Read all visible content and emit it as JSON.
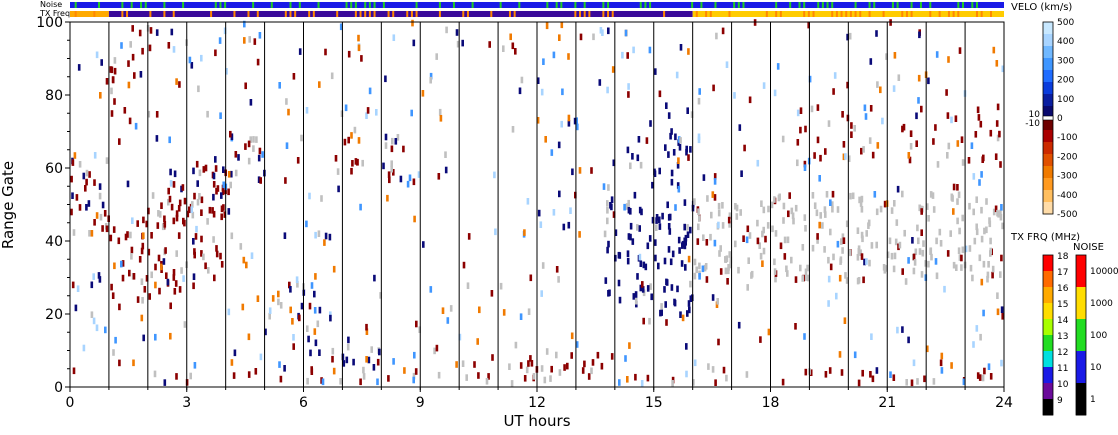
{
  "chart_data": {
    "type": "heatmap",
    "xlabel": "UT hours",
    "ylabel": "Range Gate",
    "xlim": [
      0,
      24
    ],
    "ylim": [
      0,
      100
    ],
    "x_ticks": [
      "0",
      "3",
      "6",
      "9",
      "12",
      "15",
      "18",
      "21",
      "24"
    ],
    "x_tick_values": [
      0,
      3,
      6,
      9,
      12,
      15,
      18,
      21,
      24
    ],
    "y_ticks": [
      "0",
      "20",
      "40",
      "60",
      "80",
      "100"
    ],
    "y_tick_values": [
      0,
      20,
      40,
      60,
      80,
      100
    ],
    "vertical_lines_hours": [
      1,
      2,
      3,
      4,
      5,
      6,
      7,
      8,
      9,
      10,
      11,
      12,
      13,
      14,
      15,
      16,
      17,
      18,
      19,
      20,
      21,
      22,
      23
    ],
    "top_bars": [
      {
        "label": "Noise",
        "segments": [
          {
            "start": 0,
            "end": 24,
            "color": "#1a1ae6"
          }
        ],
        "speckle_color": "#22cc22"
      },
      {
        "label": "TX Freq",
        "segments": [
          {
            "start": 0,
            "end": 1,
            "color": "#ffaa00"
          },
          {
            "start": 1,
            "end": 16,
            "color": "#3a0a9a"
          },
          {
            "start": 16,
            "end": 24,
            "color": "#ffcc00"
          }
        ],
        "speckle_color": "#ff8800"
      }
    ],
    "velocity_colorbar": {
      "title": "VELO (km/s)",
      "ticks": [
        "500",
        "400",
        "300",
        "200",
        "100",
        "0",
        "-100",
        "-200",
        "-300",
        "-400",
        "-500"
      ],
      "tick_values": [
        500,
        400,
        300,
        200,
        100,
        0,
        -100,
        -200,
        -300,
        -400,
        -500
      ],
      "side_labels": [
        "10",
        "-10"
      ],
      "colors": [
        "#c8e8ff",
        "#a8d4ff",
        "#70b8ff",
        "#3f96ff",
        "#1f6cff",
        "#0a3cdc",
        "#0a1ea0",
        "#0a0a6e",
        "#6e0000",
        "#aa0000",
        "#cc2a00",
        "#e05000",
        "#f07a00",
        "#ff9a20",
        "#ffbf60",
        "#ffdca8"
      ]
    },
    "txfreq_colorbar": {
      "title": "TX FRQ (MHz)",
      "ticks": [
        "18",
        "17",
        "16",
        "15",
        "14",
        "13",
        "12",
        "11",
        "10",
        "9"
      ],
      "colors": [
        "#ff0000",
        "#ff6a00",
        "#ffaa00",
        "#ffdd00",
        "#a8ff00",
        "#22dd22",
        "#00e0e0",
        "#1a1ae6",
        "#6a0a9a",
        "#000000"
      ]
    },
    "noise_colorbar": {
      "title": "NOISE",
      "ticks": [
        "10000",
        "1000",
        "100",
        "10",
        "1"
      ],
      "colors": [
        "#ff0000",
        "#ffdd00",
        "#22dd22",
        "#1a1ae6",
        "#000000"
      ]
    },
    "echo_colors": {
      "ground_scatter": "#c0c0c0",
      "negative_velocity": "#8c0000",
      "positive_velocity": "#0a0a78"
    },
    "echo_regions": [
      {
        "x_start": 0.0,
        "x_end": 1.0,
        "gate_start": 38,
        "gate_end": 62,
        "kind": "mixed",
        "trend": 0,
        "density": 0.5
      },
      {
        "x_start": 1.0,
        "x_end": 4.0,
        "gate_start": 24,
        "gate_end": 50,
        "kind": "negative",
        "trend": 8,
        "density": 0.5
      },
      {
        "x_start": 1.0,
        "x_end": 1.7,
        "gate_start": 72,
        "gate_end": 96,
        "kind": "negative",
        "trend": 0,
        "density": 0.35
      },
      {
        "x_start": 1.5,
        "x_end": 2.6,
        "gate_start": 90,
        "gate_end": 100,
        "kind": "negative",
        "trend": 0,
        "density": 0.3
      },
      {
        "x_start": 2.0,
        "x_end": 4.2,
        "gate_start": 45,
        "gate_end": 60,
        "kind": "mixed",
        "trend": 7,
        "density": 0.5
      },
      {
        "x_start": 4.2,
        "x_end": 5.2,
        "gate_start": 55,
        "gate_end": 68,
        "kind": "mixed",
        "trend": 0,
        "density": 0.45
      },
      {
        "x_start": 5.6,
        "x_end": 6.6,
        "gate_start": 14,
        "gate_end": 28,
        "kind": "mixed",
        "trend": 0,
        "density": 0.4
      },
      {
        "x_start": 6.8,
        "x_end": 7.4,
        "gate_start": 55,
        "gate_end": 68,
        "kind": "negative",
        "trend": 0,
        "density": 0.5
      },
      {
        "x_start": 7.8,
        "x_end": 8.8,
        "gate_start": 55,
        "gate_end": 68,
        "kind": "mixed",
        "trend": 0,
        "density": 0.4
      },
      {
        "x_start": 13.7,
        "x_end": 16.0,
        "gate_start": 20,
        "gate_end": 48,
        "kind": "positive",
        "trend": -6,
        "density": 0.55
      },
      {
        "x_start": 14.3,
        "x_end": 16.0,
        "gate_start": 35,
        "gate_end": 75,
        "kind": "positive",
        "trend": 0,
        "density": 0.3
      },
      {
        "x_start": 16.0,
        "x_end": 24.0,
        "gate_start": 28,
        "gate_end": 52,
        "kind": "ground",
        "trend": 0,
        "density": 0.6
      },
      {
        "x_start": 18.5,
        "x_end": 24.0,
        "gate_start": 60,
        "gate_end": 76,
        "kind": "negative",
        "trend": 0,
        "density": 0.25
      },
      {
        "x_start": 0.0,
        "x_end": 24.0,
        "gate_start": 0,
        "gate_end": 4,
        "kind": "negative",
        "trend": 0,
        "density": 0.3
      },
      {
        "x_start": 6.0,
        "x_end": 8.0,
        "gate_start": 5,
        "gate_end": 12,
        "kind": "positive",
        "trend": -6,
        "density": 0.5
      },
      {
        "x_start": 10.0,
        "x_end": 14.0,
        "gate_start": 3,
        "gate_end": 8,
        "kind": "negative",
        "trend": 0,
        "density": 0.35
      }
    ]
  }
}
